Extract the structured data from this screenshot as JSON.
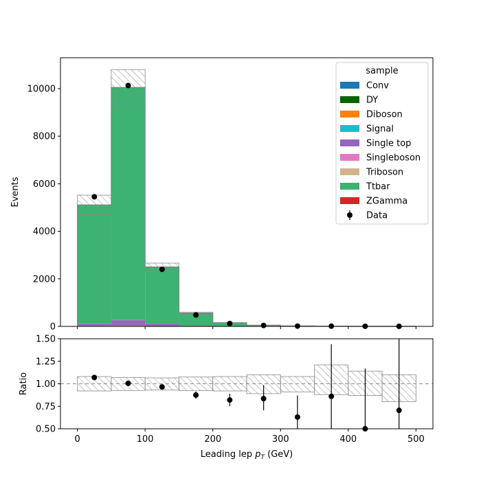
{
  "chart_data": [
    {
      "type": "bar",
      "panel": "main",
      "stacked": true,
      "bin_edges": [
        0,
        50,
        100,
        150,
        200,
        250,
        300,
        350,
        400,
        450,
        500
      ],
      "ylabel": "Events",
      "ylim": [
        0,
        11300
      ],
      "xlim": [
        -25,
        525
      ],
      "yticks": [
        0,
        2000,
        4000,
        6000,
        8000,
        10000
      ],
      "xticks": [
        0,
        100,
        200,
        300,
        400,
        500
      ],
      "legend": {
        "title": "sample",
        "placement": "top-right"
      },
      "series": [
        {
          "name": "Conv",
          "color": "#1f77b4",
          "values": [
            5,
            8,
            3,
            1,
            0,
            0,
            0,
            0,
            0,
            0
          ]
        },
        {
          "name": "DY",
          "color": "#006400",
          "values": [
            8,
            12,
            5,
            2,
            1,
            0,
            0,
            0,
            0,
            0
          ]
        },
        {
          "name": "Diboson",
          "color": "#ff7f0e",
          "values": [
            4,
            6,
            3,
            1,
            0,
            0,
            0,
            0,
            0,
            0
          ]
        },
        {
          "name": "Signal",
          "color": "#17becf",
          "values": [
            2,
            3,
            2,
            1,
            0,
            0,
            0,
            0,
            0,
            0
          ]
        },
        {
          "name": "Single top",
          "color": "#9467bd",
          "values": [
            90,
            230,
            100,
            25,
            7,
            2,
            1,
            0,
            0,
            0
          ]
        },
        {
          "name": "Singleboson",
          "color": "#e377c2",
          "values": [
            5,
            8,
            3,
            1,
            0,
            0,
            0,
            0,
            0,
            0
          ]
        },
        {
          "name": "Triboson",
          "color": "#d2b48c",
          "values": [
            1,
            1,
            1,
            0,
            0,
            0,
            0,
            0,
            0,
            0
          ]
        },
        {
          "name": "Ttbar",
          "color": "#3cb371",
          "values": [
            4995,
            9782,
            2383,
            530,
            142,
            46,
            18,
            12,
            6,
            5
          ]
        },
        {
          "name": "ZGamma",
          "color": "#d62728",
          "values": [
            0,
            0,
            0,
            0,
            0,
            0,
            0,
            0,
            0,
            0
          ]
        }
      ],
      "mc_total": [
        5110,
        10050,
        2500,
        560,
        150,
        48,
        19,
        12,
        6,
        5
      ],
      "uncertainty": {
        "up": [
          5520,
          10800,
          2660,
          600,
          165,
          52,
          21,
          14,
          7,
          6
        ],
        "down": [
          4700,
          9300,
          2320,
          520,
          138,
          44,
          17,
          10,
          5,
          4
        ]
      },
      "data": {
        "name": "Data",
        "x": [
          25,
          75,
          125,
          175,
          225,
          275,
          325,
          375,
          425,
          475
        ],
        "y": [
          5450,
          10130,
          2400,
          480,
          123,
          40,
          12,
          10,
          5,
          3
        ]
      }
    },
    {
      "type": "scatter",
      "panel": "ratio",
      "xlabel": "Leading lep $p_T$ (GeV)",
      "ylabel": "Ratio",
      "ylim": [
        0.5,
        1.5
      ],
      "yticks": [
        "0.50",
        "0.75",
        "1.00",
        "1.25",
        "1.50"
      ],
      "xticks": [
        0,
        100,
        200,
        300,
        400,
        500
      ],
      "reference_line": 1.0,
      "band": {
        "up": [
          1.08,
          1.07,
          1.065,
          1.075,
          1.08,
          1.1,
          1.08,
          1.21,
          1.14,
          1.1
        ],
        "down": [
          0.92,
          0.925,
          0.93,
          0.925,
          0.92,
          0.89,
          0.91,
          0.88,
          0.87,
          0.8
        ]
      },
      "points": {
        "x": [
          25,
          75,
          125,
          175,
          225,
          275,
          325,
          375,
          425,
          475
        ],
        "y": [
          1.07,
          1.005,
          0.965,
          0.875,
          0.82,
          0.835,
          0.63,
          0.86,
          0.5,
          0.705
        ],
        "err_low": [
          0.015,
          0.01,
          0.02,
          0.04,
          0.07,
          0.13,
          0.28,
          0.55,
          0.5,
          0.6
        ],
        "err_high": [
          0.015,
          0.01,
          0.02,
          0.04,
          0.07,
          0.15,
          0.24,
          0.58,
          0.67,
          0.8
        ]
      }
    }
  ]
}
